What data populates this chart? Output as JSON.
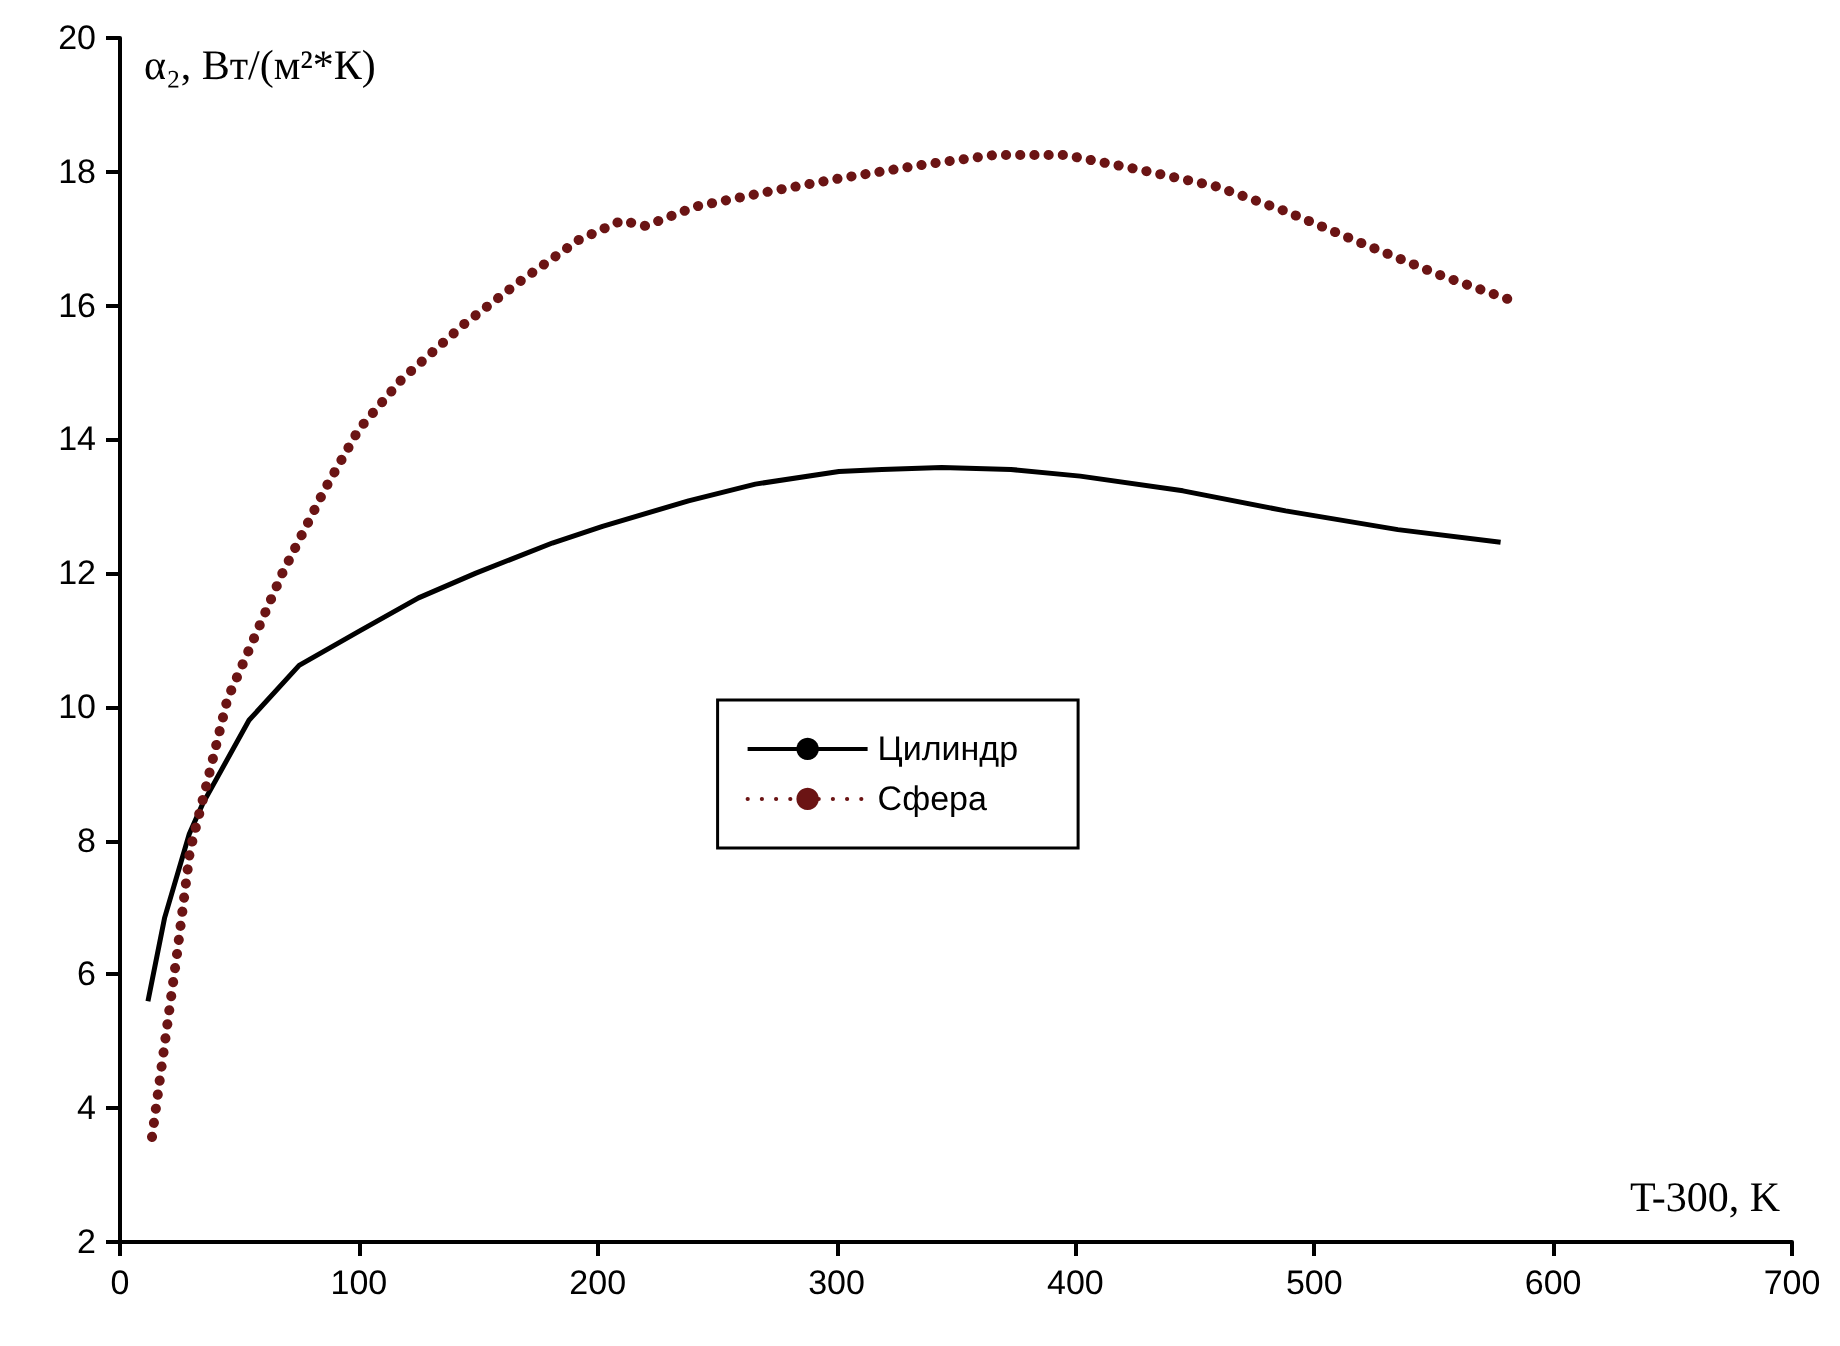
{
  "chart_data": {
    "type": "line",
    "xlabel": "T-300, K",
    "ylabel": "α₂, Вт/(м²*К)",
    "xlim": [
      0,
      700
    ],
    "xticks": [
      0,
      100,
      200,
      300,
      400,
      500,
      600,
      700
    ],
    "ylim": [
      2,
      20
    ],
    "yticks": [
      2,
      4,
      6,
      8,
      10,
      12,
      14,
      16,
      18,
      20
    ],
    "grid": false,
    "legend": "center",
    "marker": "none",
    "series": [
      {
        "name": "Цилиндр",
        "color": "#000000",
        "line_style": "solid",
        "x": [
          11.7,
          18.7,
          29,
          34.6,
          54,
          75,
          100,
          125,
          149,
          181,
          202,
          238,
          266,
          301,
          319,
          344,
          373,
          402,
          445,
          488,
          535,
          578
        ],
        "values": [
          5.6,
          6.85,
          8.1,
          8.55,
          9.8,
          10.62,
          11.13,
          11.63,
          12.0,
          12.45,
          12.7,
          13.08,
          13.33,
          13.52,
          13.55,
          13.58,
          13.55,
          13.45,
          13.23,
          12.93,
          12.65,
          12.46
        ]
      },
      {
        "name": "Сфера",
        "color": "#6b1414",
        "line_style": "dotted",
        "x": [
          13.4,
          18.7,
          24,
          29.3,
          36.4,
          45,
          55.8,
          68,
          86,
          100,
          118,
          144,
          167,
          192,
          210,
          220,
          241,
          271,
          301,
          337,
          366,
          396,
          427,
          459,
          488,
          520,
          553,
          584
        ],
        "values": [
          3.57,
          4.96,
          6.34,
          7.85,
          8.86,
          10.12,
          11.0,
          12.0,
          13.27,
          14.15,
          14.9,
          15.72,
          16.35,
          16.98,
          17.27,
          17.19,
          17.48,
          17.7,
          17.9,
          18.11,
          18.25,
          18.25,
          18.03,
          17.78,
          17.41,
          16.93,
          16.45,
          16.06
        ]
      }
    ]
  }
}
